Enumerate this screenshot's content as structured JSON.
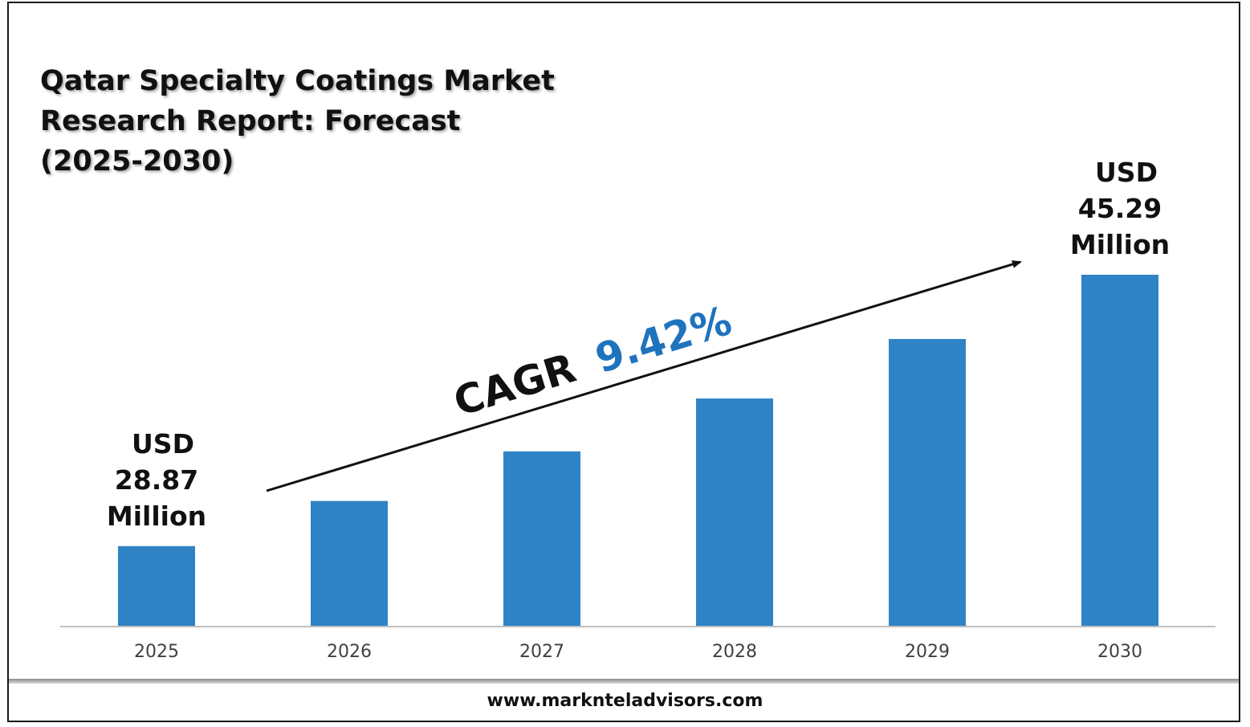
{
  "title_lines": [
    "Qatar Specialty Coatings Market",
    "Research Report: Forecast",
    "(2025-2030)"
  ],
  "chart_data": {
    "type": "bar",
    "title": "Qatar Specialty Coatings Market Research Report: Forecast (2025-2030)",
    "categories": [
      "2025",
      "2026",
      "2027",
      "2028",
      "2029",
      "2030"
    ],
    "values": [
      28.87,
      31.6,
      34.6,
      37.8,
      41.4,
      45.29
    ],
    "ylim": [
      24,
      50
    ],
    "grid": false,
    "bar_color": "#2f83c5",
    "data_labels": [
      {
        "category": "2025",
        "lines": [
          "USD",
          "28.87",
          "Million"
        ]
      },
      {
        "category": "2030",
        "lines": [
          "USD",
          "45.29",
          "Million"
        ]
      }
    ],
    "annotation": {
      "prefix": "CAGR",
      "value": "9.42%",
      "value_color": "#1f73bd"
    }
  },
  "footer": {
    "url": "www.marknteladvisors.com"
  }
}
